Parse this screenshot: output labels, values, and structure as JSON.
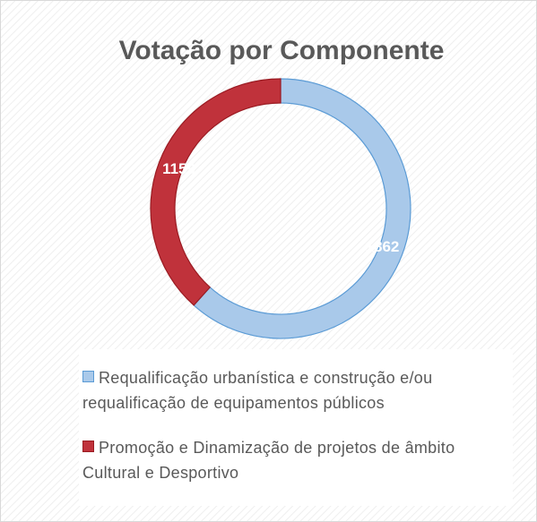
{
  "chart_data": {
    "type": "donut",
    "title": "Votação por Componente",
    "categories": [
      "Requalificação urbanística e construção e/ou requalificação de equipamentos públicos",
      "Promoção e Dinamização de projetos de âmbito Cultural e Desportivo"
    ],
    "values": [
      1862,
      1159
    ],
    "colors": [
      "#a9c9ea",
      "#c0323b"
    ],
    "legend": "bottom"
  }
}
